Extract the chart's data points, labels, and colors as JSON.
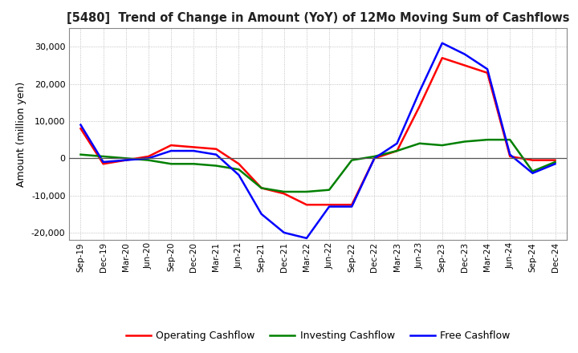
{
  "title": "[5480]  Trend of Change in Amount (YoY) of 12Mo Moving Sum of Cashflows",
  "ylabel": "Amount (million yen)",
  "x_labels": [
    "Sep-19",
    "Dec-19",
    "Mar-20",
    "Jun-20",
    "Sep-20",
    "Dec-20",
    "Mar-21",
    "Jun-21",
    "Sep-21",
    "Dec-21",
    "Mar-22",
    "Jun-22",
    "Sep-22",
    "Dec-22",
    "Mar-23",
    "Jun-23",
    "Sep-23",
    "Dec-23",
    "Mar-24",
    "Jun-24",
    "Sep-24",
    "Dec-24"
  ],
  "operating_cashflow": [
    8000,
    -1500,
    -500,
    500,
    3500,
    3000,
    2500,
    -1500,
    -8000,
    -9500,
    -12500,
    -12500,
    -12500,
    0,
    2000,
    14000,
    27000,
    25000,
    23000,
    500,
    -500,
    -500
  ],
  "investing_cashflow": [
    1000,
    500,
    0,
    -500,
    -1500,
    -1500,
    -2000,
    -3000,
    -8000,
    -9000,
    -9000,
    -8500,
    -500,
    500,
    2000,
    4000,
    3500,
    4500,
    5000,
    5000,
    -3500,
    -1000
  ],
  "free_cashflow": [
    9000,
    -1000,
    -500,
    0,
    2000,
    2000,
    1000,
    -4500,
    -15000,
    -20000,
    -21500,
    -13000,
    -13000,
    0,
    4000,
    18000,
    31000,
    28000,
    24000,
    1000,
    -4000,
    -1500
  ],
  "operating_color": "#ff0000",
  "investing_color": "#008000",
  "free_color": "#0000ff",
  "ylim": [
    -22000,
    35000
  ],
  "yticks": [
    -20000,
    -10000,
    0,
    10000,
    20000,
    30000
  ],
  "background_color": "#ffffff",
  "grid_color": "#b0b0b0",
  "linewidth": 1.8
}
